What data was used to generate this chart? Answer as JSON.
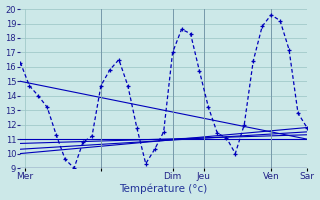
{
  "xlabel": "Température (°c)",
  "background_color": "#cce8e8",
  "grid_color": "#99c4c4",
  "line_color": "#0000bb",
  "ylim": [
    9,
    20
  ],
  "xlim": [
    0,
    32
  ],
  "day_positions": [
    0.5,
    9,
    17,
    20.5,
    28,
    32
  ],
  "day_labels": [
    "Mer",
    "",
    "Dim",
    "Jeu",
    "Ven",
    "Sar"
  ],
  "day_vlines": [
    0.5,
    9,
    17,
    20.5,
    28,
    32
  ],
  "main_x": [
    0,
    1,
    2,
    3,
    4,
    5,
    6,
    7,
    8,
    9,
    10,
    11,
    12,
    13,
    14,
    15,
    16,
    17,
    18,
    19,
    20,
    21,
    22,
    23,
    24,
    25,
    26,
    27,
    28,
    29,
    30,
    31,
    32
  ],
  "main_y": [
    16.3,
    14.7,
    14.0,
    13.2,
    11.3,
    9.6,
    9.0,
    10.8,
    11.2,
    14.7,
    15.8,
    16.5,
    14.7,
    11.8,
    9.3,
    10.3,
    11.5,
    17.0,
    18.6,
    18.3,
    15.7,
    13.2,
    11.4,
    11.1,
    10.0,
    12.0,
    16.4,
    18.8,
    19.6,
    19.2,
    17.2,
    12.8,
    11.8
  ],
  "ref_line1_x": [
    0,
    32
  ],
  "ref_line1_y": [
    15.0,
    11.0
  ],
  "ref_line2_x": [
    0,
    32
  ],
  "ref_line2_y": [
    11.0,
    11.0
  ],
  "ref_line3_x": [
    0,
    32
  ],
  "ref_line3_y": [
    10.7,
    11.3
  ],
  "ref_line4_x": [
    0,
    32
  ],
  "ref_line4_y": [
    10.3,
    11.5
  ],
  "ref_line5_x": [
    0,
    32
  ],
  "ref_line5_y": [
    10.0,
    11.8
  ]
}
